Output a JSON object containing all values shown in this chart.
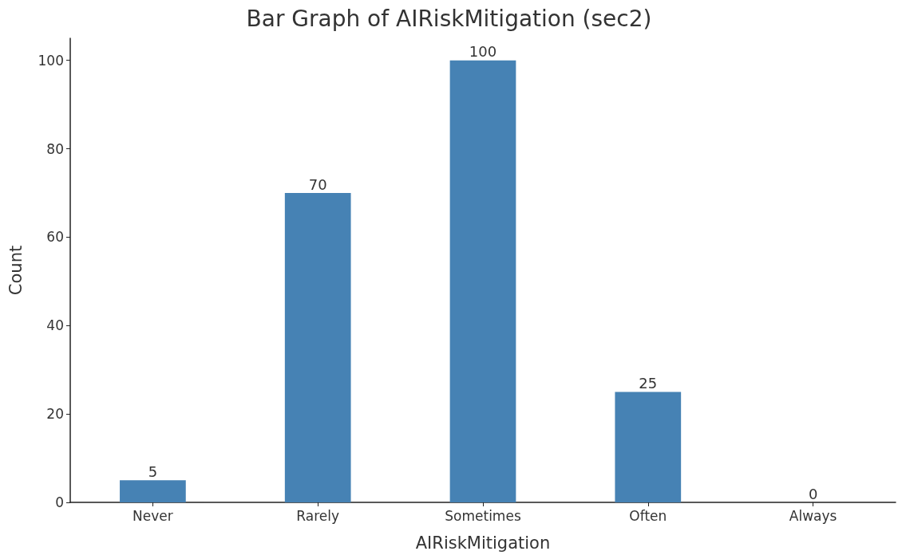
{
  "chart_data": {
    "type": "bar",
    "title": "Bar Graph of AIRiskMitigation (sec2)",
    "xlabel": "AIRiskMitigation",
    "ylabel": "Count",
    "categories": [
      "Never",
      "Rarely",
      "Sometimes",
      "Often",
      "Always"
    ],
    "values": [
      5,
      70,
      100,
      25,
      0
    ],
    "color": "#4682b4",
    "ylim": [
      0,
      105
    ],
    "yticks": [
      0,
      20,
      40,
      60,
      80,
      100
    ],
    "grid": false,
    "data_labels": true
  }
}
